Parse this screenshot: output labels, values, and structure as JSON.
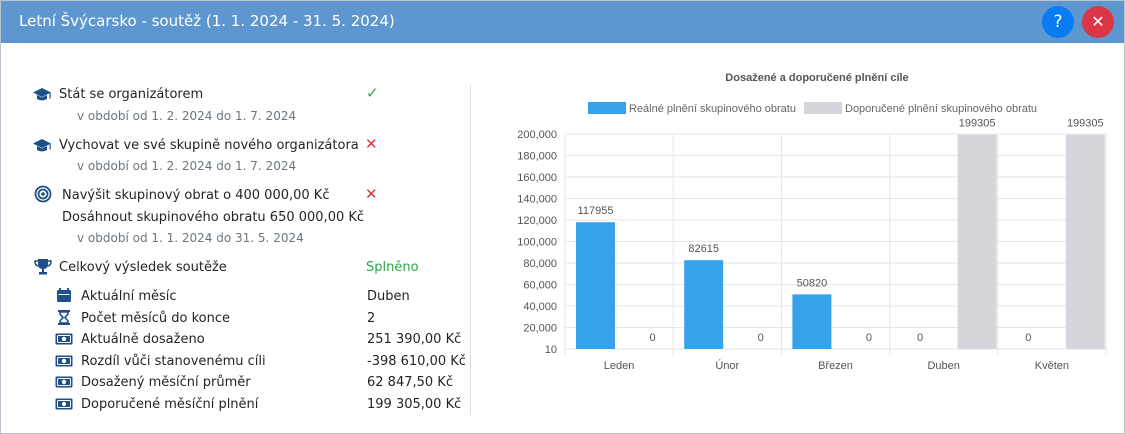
{
  "header": {
    "title": "Letní Švýcarsko - soutěž (1. 1. 2024 - 31. 5. 2024)",
    "help_label": "?",
    "close_label": "✕"
  },
  "goals": [
    {
      "label": "Stát se organizátorem",
      "period": "v období od 1. 2. 2024 do 1. 7. 2024",
      "status": "✓",
      "icon": "graduation-cap-icon"
    },
    {
      "label": "Vychovat ve své skupině nového organizátora",
      "period": "v období od 1. 2. 2024 do 1. 7. 2024",
      "status": "✕",
      "icon": "graduation-cap-icon"
    },
    {
      "label": "Navýšit skupinový obrat o 400 000,00 Kč",
      "label2": "Dosáhnout skupinového obratu 650 000,00 Kč",
      "period": "v období od 1. 1. 2024 do 31. 5. 2024",
      "status": "✕",
      "icon": "target-icon"
    }
  ],
  "result": {
    "label": "Celkový výsledek soutěže",
    "value": "Splněno",
    "icon": "trophy-icon",
    "details": [
      {
        "label": "Aktuální měsíc",
        "value": "Duben",
        "icon": "calendar-icon"
      },
      {
        "label": "Počet měsíců do konce",
        "value": "2",
        "icon": "hourglass-icon"
      },
      {
        "label": "Aktuálně dosaženo",
        "value": "251 390,00 Kč",
        "icon": "money-icon"
      },
      {
        "label": "Rozdíl vůči stanovenému cíli",
        "value": "-398 610,00 Kč",
        "icon": "money-icon"
      },
      {
        "label": "Dosažený měsíční průměr",
        "value": "62 847,50 Kč",
        "icon": "money-icon"
      },
      {
        "label": "Doporučené měsíční plnění",
        "value": "199 305,00 Kč",
        "icon": "money-icon"
      }
    ]
  },
  "chart_data": {
    "type": "bar",
    "title": "Dosažené a doporučené plnění cíle",
    "categories": [
      "Leden",
      "Únor",
      "Březen",
      "Duben",
      "Květen"
    ],
    "series": [
      {
        "name": "Reálné plnění skupinového obratu",
        "values": [
          117955,
          82615,
          50820,
          0,
          0
        ],
        "color": "#36a2eb"
      },
      {
        "name": "Doporučené plnění skupinového obratu",
        "values": [
          0,
          0,
          0,
          199305,
          199305
        ],
        "color": "#d4d6db"
      }
    ],
    "data_labels": [
      [
        "117955",
        "82615",
        "50820",
        "0",
        "0"
      ],
      [
        "0",
        "0",
        "0",
        "199305",
        "199305"
      ]
    ],
    "yticks": [
      "10",
      "20,000",
      "40,000",
      "60,000",
      "80,000",
      "100,000",
      "120,000",
      "140,000",
      "160,000",
      "180,000",
      "200,000"
    ],
    "ylim": [
      10,
      200000
    ],
    "grid": true,
    "legend_position": "top"
  }
}
